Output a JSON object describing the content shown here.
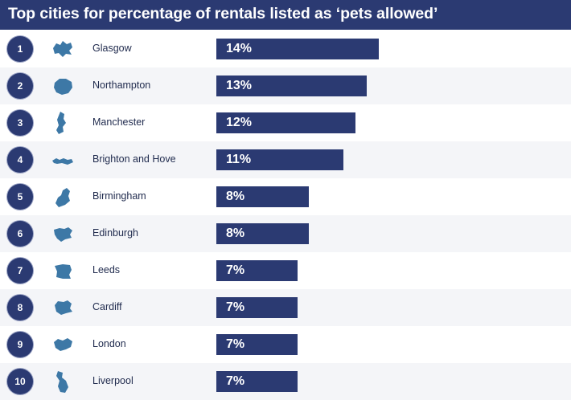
{
  "chart_data": {
    "type": "bar",
    "orientation": "horizontal",
    "title": "Top cities for percentage of rentals listed as ‘pets allowed’",
    "unit": "%",
    "categories": [
      "Glasgow",
      "Northampton",
      "Manchester",
      "Brighton and Hove",
      "Birmingham",
      "Edinburgh",
      "Leeds",
      "Cardiff",
      "London",
      "Liverpool"
    ],
    "ranks": [
      "1",
      "2",
      "3",
      "4",
      "5",
      "6",
      "7",
      "8",
      "9",
      "10"
    ],
    "values": [
      14,
      13,
      12,
      11,
      8,
      8,
      7,
      7,
      7,
      7
    ],
    "value_labels": [
      "14%",
      "13%",
      "12%",
      "11%",
      "8%",
      "8%",
      "7%",
      "7%",
      "7%",
      "7%"
    ],
    "icons": [
      "glasgow-map-icon",
      "northampton-map-icon",
      "manchester-map-icon",
      "brighton-and-hove-map-icon",
      "birmingham-map-icon",
      "edinburgh-map-icon",
      "leeds-map-icon",
      "cardiff-map-icon",
      "london-map-icon",
      "liverpool-map-icon"
    ],
    "xlim": [
      0,
      14
    ]
  },
  "colors": {
    "header": "#2b3a72",
    "bar": "#2b3a72",
    "rank_circle": "#2b3a72",
    "map_icon": "#3d78a6",
    "row_alt": "#f4f5f8"
  }
}
